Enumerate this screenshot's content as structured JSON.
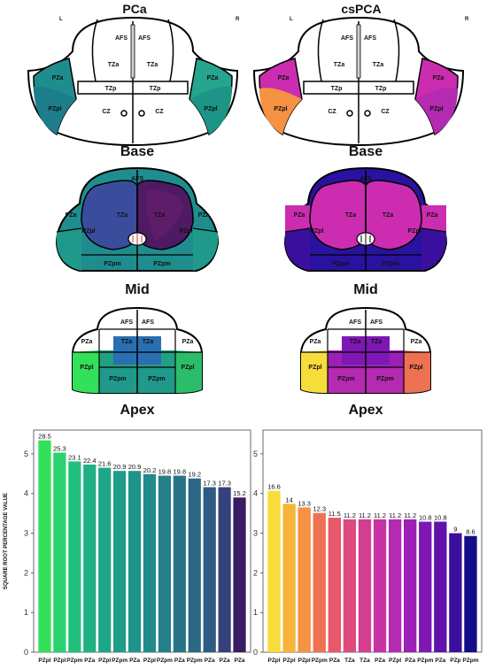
{
  "columns": [
    {
      "title": "PCa",
      "left": "L",
      "right": "R"
    },
    {
      "title": "csPCA",
      "left": "L",
      "right": "R"
    }
  ],
  "levels": [
    "Base",
    "Mid",
    "Apex"
  ],
  "zone_labels": {
    "afs": "AFS",
    "tza": "TZa",
    "tzp": "TZp",
    "pza": "PZa",
    "pzpl": "PZpl",
    "pzpm": "PZpm",
    "cz": "CZ"
  },
  "palettes": {
    "pca": {
      "high": "#33e05a",
      "mid": "#1f9a8a",
      "low": "#3a1c63"
    },
    "cspca": {
      "high": "#f7dd3a",
      "mid": "#cc2db0",
      "low": "#120e8a"
    }
  },
  "chart_data": [
    {
      "type": "bar",
      "ylabel": "SQUARE ROOT PERCENTAGE VALUE",
      "ylim": [
        0,
        5.6
      ],
      "yticks": [
        0,
        1,
        2,
        3,
        4,
        5
      ],
      "categories": [
        "PZpl",
        "PZpl",
        "PZpm",
        "PZa",
        "PZpl",
        "PZpm",
        "PZa",
        "PZpl",
        "PZpm",
        "PZa",
        "PZpm",
        "PZa",
        "PZa",
        "PZa"
      ],
      "labels": [
        "28.5",
        "25.3",
        "23.1",
        "22.4",
        "21.6",
        "20.9",
        "20.9",
        "20.2",
        "19.8",
        "19.8",
        "19.2",
        "17.3",
        "17.3",
        "15.2"
      ],
      "values": [
        5.34,
        5.03,
        4.81,
        4.73,
        4.65,
        4.57,
        4.57,
        4.49,
        4.45,
        4.45,
        4.38,
        4.16,
        4.16,
        3.9
      ],
      "colors": [
        "#33e05a",
        "#2ad26f",
        "#22bf7c",
        "#1fb084",
        "#1ea688",
        "#1f9d89",
        "#20948a",
        "#228a8a",
        "#247f89",
        "#277487",
        "#2a6886",
        "#2e5b83",
        "#34417a",
        "#3a1c63"
      ]
    },
    {
      "type": "bar",
      "ylim": [
        0,
        5.6
      ],
      "yticks": [
        0,
        1,
        2,
        3,
        4,
        5
      ],
      "categories": [
        "PZpl",
        "PZpl",
        "PZpl",
        "PZpm",
        "PZa",
        "TZa",
        "TZa",
        "PZa",
        "PZpl",
        "PZa",
        "PZpm",
        "PZa",
        "PZp",
        "PZpm"
      ],
      "labels": [
        "16.6",
        "14",
        "13.3",
        "12.3",
        "11.5",
        "11.2",
        "11.2",
        "11.2",
        "11.2",
        "11.2",
        "10.8",
        "10.8",
        "9",
        "8.6"
      ],
      "values": [
        4.07,
        3.74,
        3.65,
        3.51,
        3.39,
        3.35,
        3.35,
        3.35,
        3.35,
        3.35,
        3.29,
        3.29,
        3.0,
        2.93
      ],
      "colors": [
        "#f7dd3a",
        "#f7b43a",
        "#f59244",
        "#ee7154",
        "#e75868",
        "#de4a7d",
        "#d43d90",
        "#c633a3",
        "#b42ab0",
        "#9c20b6",
        "#7f17b4",
        "#6112ab",
        "#3b0f9e",
        "#120e8a"
      ]
    }
  ]
}
